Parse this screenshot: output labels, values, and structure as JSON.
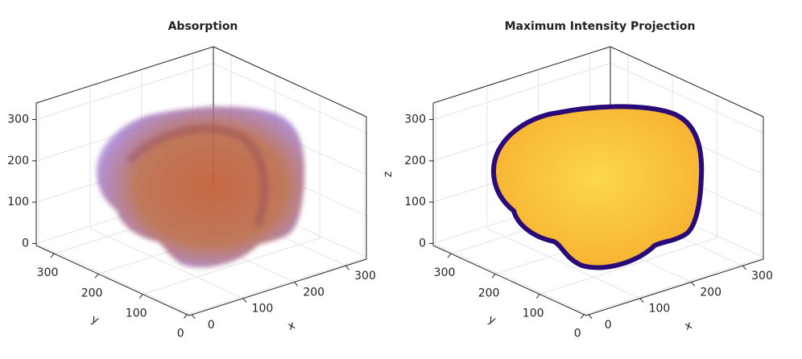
{
  "chart_data": [
    {
      "type": "volume",
      "title": "Absorption",
      "xlabel": "x",
      "ylabel": "y",
      "xlim": [
        -5,
        340
      ],
      "ylim": [
        -5,
        340
      ],
      "zlim": [
        -5,
        340
      ],
      "xticks": [
        0,
        100,
        200,
        300
      ],
      "yticks": [
        0,
        100,
        200,
        300
      ],
      "zticks": [
        0,
        100,
        200,
        300
      ],
      "grid": true
    },
    {
      "type": "mip",
      "title": "Maximum Intensity Projection",
      "xlabel": "x",
      "ylabel": "y",
      "zlabel": "z",
      "xlim": [
        -5,
        340
      ],
      "ylim": [
        -5,
        340
      ],
      "zlim": [
        -5,
        340
      ],
      "xticks": [
        0,
        100,
        200,
        300
      ],
      "yticks": [
        0,
        100,
        200,
        300
      ],
      "zticks": [
        0,
        100,
        200,
        300
      ],
      "grid": true
    }
  ]
}
